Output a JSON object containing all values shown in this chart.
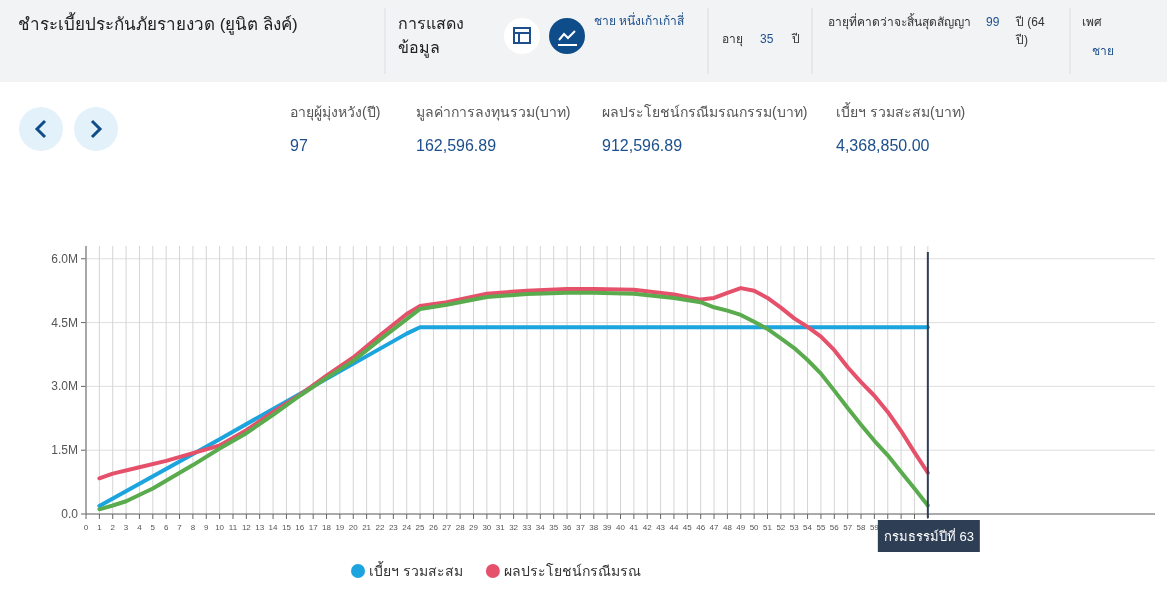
{
  "chart_data": {
    "type": "line",
    "title": "ชำระเบี้ยประกันภัยรายงวด (ยูนิต ลิงค์)",
    "annotations": [
      "การแสดงข้อมูล",
      "ชาย หนึ่งเก้าเก้าสี่",
      "อายุ",
      "35",
      "ปี",
      "อายุที่คาดว่าจะสิ้นสุดสัญญา",
      "99",
      "ปี (64 ปี)",
      "เพศ",
      "ชาย",
      "อายุผู้มุ่งหวัง(ปี)",
      "97",
      "มูลค่าการลงทุนรวม(บาท)",
      "162,596.89",
      "ผลประโยชน์กรณีมรณกรรม(บาท)",
      "912,596.89",
      "เบี้ยฯ รวมสะสม(บาท)",
      "4,368,850.00"
    ],
    "xlim": [
      0,
      80
    ],
    "xticks": [
      0,
      1,
      2,
      3,
      4,
      5,
      6,
      7,
      8,
      9,
      10,
      11,
      12,
      13,
      14,
      15,
      16,
      17,
      18,
      19,
      20,
      21,
      22,
      23,
      24,
      25,
      26,
      27,
      28,
      29,
      30,
      31,
      32,
      33,
      34,
      35,
      36,
      37,
      38,
      39,
      40,
      41,
      42,
      43,
      44,
      45,
      46,
      47,
      48,
      49,
      50,
      51,
      52,
      53,
      54,
      55,
      56,
      57,
      58,
      59,
      {
        "value": 60,
        "label": null
      },
      {
        "value": 61,
        "label": null
      },
      {
        "value": 62,
        "label": null
      },
      {
        "value": 63,
        "label": null
      }
    ],
    "ylim": [
      0,
      6.3
    ],
    "yticks": [
      {
        "value": 0,
        "label": "0.0"
      },
      {
        "value": 1.5,
        "label": "1.5M"
      },
      {
        "value": 3,
        "label": "3.0M"
      },
      {
        "value": 4.5,
        "label": "4.5M"
      },
      {
        "value": 6,
        "label": "6.0M"
      }
    ],
    "grid": true,
    "legend": "bottom",
    "line_style": "solid",
    "marker": "none",
    "ref_lines": [
      {
        "axis": "x",
        "value": 63,
        "label": "กรมธรรม์ปีที่ 63",
        "color": "#2e3e55"
      }
    ],
    "series": [
      {
        "name": "เบี้ยฯ รวมสะสม",
        "color": "#1ba4dd",
        "x": [
          1,
          10,
          24,
          25,
          63
        ],
        "values": [
          0.19,
          1.76,
          4.24,
          4.39,
          4.39
        ]
      },
      {
        "name": "ผลประโยชน์กรณีมรณ",
        "color": "#e5506a",
        "x": [
          1,
          2,
          4,
          6,
          8,
          10,
          12,
          14,
          16,
          18,
          20,
          22,
          24,
          25,
          27,
          30,
          33,
          36,
          38,
          41,
          44,
          46,
          47,
          48,
          49,
          50,
          51,
          52,
          53,
          54,
          55,
          56,
          57,
          58,
          59,
          60,
          61,
          62,
          63
        ],
        "values": [
          0.84,
          0.95,
          1.1,
          1.25,
          1.43,
          1.61,
          1.97,
          2.4,
          2.8,
          3.25,
          3.68,
          4.2,
          4.7,
          4.89,
          4.98,
          5.18,
          5.25,
          5.29,
          5.29,
          5.27,
          5.16,
          5.04,
          5.08,
          5.2,
          5.31,
          5.25,
          5.08,
          4.85,
          4.6,
          4.4,
          4.17,
          3.85,
          3.45,
          3.1,
          2.78,
          2.4,
          1.95,
          1.45,
          0.97
        ]
      },
      {
        "color": "#5aab4e",
        "x": [
          1,
          2,
          3,
          5,
          8,
          10,
          12,
          14,
          16,
          18,
          20,
          22,
          24,
          25,
          27,
          30,
          33,
          36,
          38,
          41,
          44,
          46,
          47,
          48,
          49,
          50,
          51,
          52,
          53,
          54,
          55,
          56,
          57,
          58,
          59,
          60,
          61,
          62,
          63
        ],
        "values": [
          0.11,
          0.2,
          0.3,
          0.6,
          1.15,
          1.54,
          1.9,
          2.33,
          2.78,
          3.2,
          3.6,
          4.1,
          4.58,
          4.82,
          4.92,
          5.1,
          5.17,
          5.2,
          5.2,
          5.18,
          5.08,
          4.98,
          4.86,
          4.78,
          4.68,
          4.52,
          4.35,
          4.13,
          3.9,
          3.62,
          3.3,
          2.9,
          2.49,
          2.1,
          1.72,
          1.38,
          0.99,
          0.6,
          0.2
        ]
      }
    ]
  }
}
